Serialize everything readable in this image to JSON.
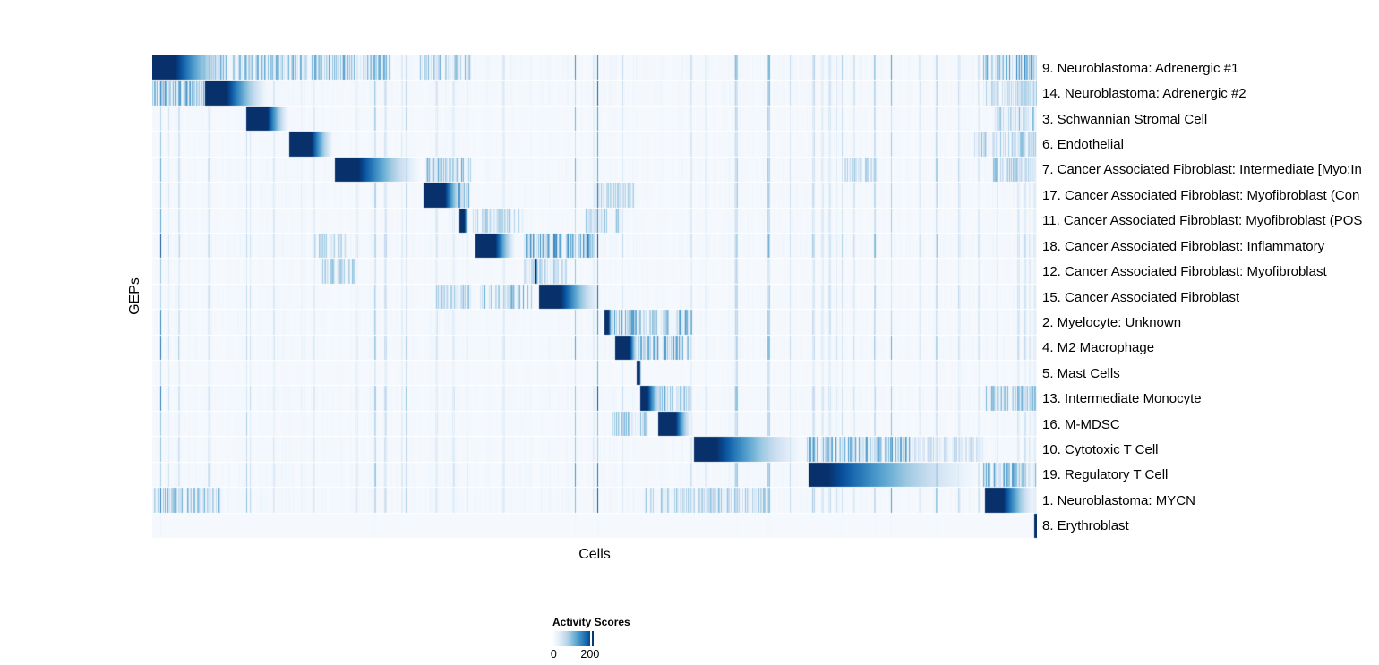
{
  "chart_data": {
    "type": "heatmap",
    "xlabel": "Cells",
    "ylabel": "GEPs",
    "legend": {
      "title": "Activity Scores",
      "min_label": "0",
      "tick_label": "200",
      "min_value": 0,
      "tick_value": 200,
      "tick_position_frac": 0.91
    },
    "colors": {
      "background": "#f5f9fd",
      "row_gap": "#ffffff",
      "scale_stops": [
        "#f7fbff",
        "#deebf7",
        "#c6dbef",
        "#9ecae1",
        "#6baed6",
        "#4292c6",
        "#2171b5",
        "#08519c",
        "#08306b"
      ]
    },
    "axis_extent_note": "block positions are fractions of the Cells axis (0 = left edge, 1 = right edge)",
    "rows": [
      {
        "label": "9. Neuroblastoma: Adrenergic #1",
        "block_start": 0.0,
        "block_dark_end": 0.026,
        "block_fade_end": 0.09,
        "noise_level": 1.0,
        "stripe_clusters": [
          [
            0.05,
            0.27,
            0.45
          ],
          [
            0.3,
            0.36,
            0.4
          ],
          [
            0.94,
            1.0,
            0.55
          ]
        ]
      },
      {
        "label": "14. Neuroblastoma: Adrenergic #2",
        "block_start": 0.059,
        "block_dark_end": 0.084,
        "block_fade_end": 0.133,
        "noise_level": 0.9,
        "stripe_clusters": [
          [
            0.0,
            0.06,
            0.5
          ],
          [
            0.94,
            1.0,
            0.3
          ]
        ]
      },
      {
        "label": "3. Schwannian Stromal Cell",
        "block_start": 0.106,
        "block_dark_end": 0.13,
        "block_fade_end": 0.155,
        "noise_level": 0.7,
        "stripe_clusters": [
          [
            0.95,
            1.0,
            0.4
          ]
        ]
      },
      {
        "label": "6. Endothelial",
        "block_start": 0.155,
        "block_dark_end": 0.18,
        "block_fade_end": 0.206,
        "noise_level": 0.7,
        "stripe_clusters": [
          [
            0.93,
            1.0,
            0.35
          ]
        ]
      },
      {
        "label": "7. Cancer Associated Fibroblast: Intermediate [Myo:In",
        "block_start": 0.206,
        "block_dark_end": 0.233,
        "block_fade_end": 0.306,
        "noise_level": 0.85,
        "stripe_clusters": [
          [
            0.31,
            0.36,
            0.45
          ],
          [
            0.78,
            0.82,
            0.3
          ],
          [
            0.95,
            1.0,
            0.35
          ]
        ]
      },
      {
        "label": "17. Cancer Associated Fibroblast: Myofibroblast (Con",
        "block_start": 0.306,
        "block_dark_end": 0.331,
        "block_fade_end": 0.353,
        "noise_level": 0.8,
        "stripe_clusters": [
          [
            0.32,
            0.36,
            0.5
          ],
          [
            0.5,
            0.55,
            0.3
          ]
        ]
      },
      {
        "label": "11. Cancer Associated Fibroblast: Myofibroblast (POS",
        "block_start": 0.347,
        "block_dark_end": 0.353,
        "block_fade_end": 0.358,
        "noise_level": 0.7,
        "stripe_clusters": [
          [
            0.36,
            0.42,
            0.35
          ],
          [
            0.49,
            0.53,
            0.35
          ]
        ]
      },
      {
        "label": "18. Cancer Associated Fibroblast: Inflammatory",
        "block_start": 0.365,
        "block_dark_end": 0.388,
        "block_fade_end": 0.412,
        "noise_level": 1.0,
        "stripe_clusters": [
          [
            0.42,
            0.5,
            0.55
          ],
          [
            0.18,
            0.22,
            0.3
          ]
        ]
      },
      {
        "label": "12. Cancer Associated Fibroblast: Myofibroblast",
        "block_start": 0.432,
        "block_dark_end": 0.434,
        "block_fade_end": 0.436,
        "noise_level": 0.6,
        "stripe_clusters": [
          [
            0.19,
            0.23,
            0.35
          ],
          [
            0.42,
            0.47,
            0.3
          ]
        ]
      },
      {
        "label": "15. Cancer Associated Fibroblast",
        "block_start": 0.437,
        "block_dark_end": 0.462,
        "block_fade_end": 0.509,
        "noise_level": 0.8,
        "stripe_clusters": [
          [
            0.37,
            0.43,
            0.5
          ],
          [
            0.32,
            0.36,
            0.35
          ]
        ]
      },
      {
        "label": "2. Myelocyte: Unknown",
        "block_start": 0.511,
        "block_dark_end": 0.516,
        "block_fade_end": 0.521,
        "noise_level": 0.8,
        "stripe_clusters": [
          [
            0.52,
            0.61,
            0.5
          ]
        ]
      },
      {
        "label": "4. M2 Macrophage",
        "block_start": 0.523,
        "block_dark_end": 0.54,
        "block_fade_end": 0.55,
        "noise_level": 0.9,
        "stripe_clusters": [
          [
            0.55,
            0.61,
            0.5
          ]
        ]
      },
      {
        "label": "5. Mast Cells",
        "block_start": 0.548,
        "block_dark_end": 0.551,
        "block_fade_end": 0.553,
        "noise_level": 0.5,
        "stripe_clusters": []
      },
      {
        "label": "13. Intermediate Monocyte",
        "block_start": 0.552,
        "block_dark_end": 0.56,
        "block_fade_end": 0.578,
        "noise_level": 0.9,
        "stripe_clusters": [
          [
            0.56,
            0.61,
            0.45
          ],
          [
            0.94,
            1.0,
            0.4
          ]
        ]
      },
      {
        "label": "16. M-MDSC",
        "block_start": 0.572,
        "block_dark_end": 0.592,
        "block_fade_end": 0.611,
        "noise_level": 0.7,
        "stripe_clusters": [
          [
            0.52,
            0.56,
            0.4
          ]
        ]
      },
      {
        "label": "10. Cytotoxic T Cell",
        "block_start": 0.612,
        "block_dark_end": 0.638,
        "block_fade_end": 0.74,
        "noise_level": 0.8,
        "stripe_clusters": [
          [
            0.74,
            0.86,
            0.5
          ],
          [
            0.86,
            0.94,
            0.25
          ]
        ]
      },
      {
        "label": "19. Regulatory T Cell",
        "block_start": 0.742,
        "block_dark_end": 0.764,
        "block_fade_end": 0.942,
        "noise_level": 0.9,
        "stripe_clusters": [
          [
            0.94,
            1.0,
            0.5
          ]
        ]
      },
      {
        "label": "1. Neuroblastoma: MYCN",
        "block_start": 0.942,
        "block_dark_end": 0.963,
        "block_fade_end": 1.0,
        "noise_level": 1.0,
        "stripe_clusters": [
          [
            0.0,
            0.08,
            0.45
          ],
          [
            0.55,
            0.7,
            0.35
          ]
        ]
      },
      {
        "label": "8. Erythroblast",
        "block_start": 0.997,
        "block_dark_end": 1.0,
        "block_fade_end": 1.0,
        "noise_level": 0.06,
        "stripe_clusters": []
      }
    ]
  }
}
